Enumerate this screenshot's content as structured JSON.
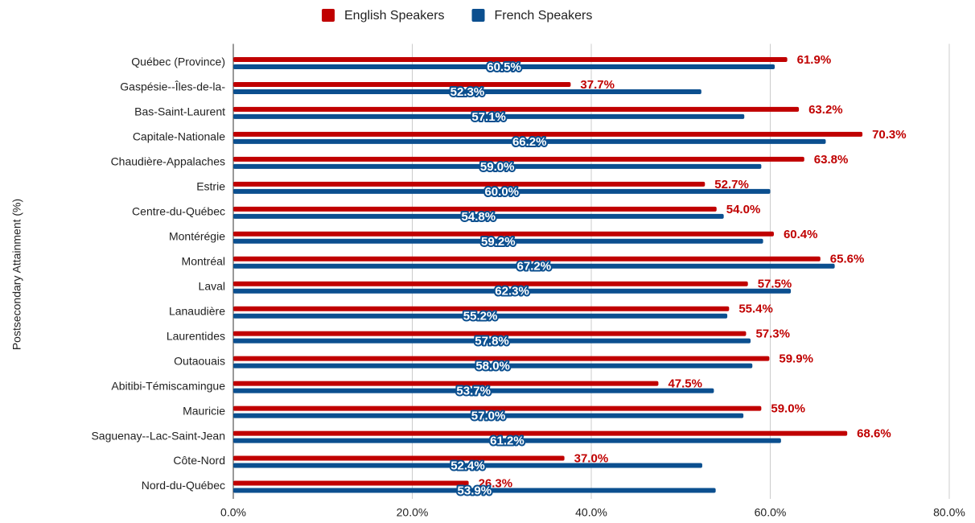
{
  "chart_data": {
    "type": "hbar",
    "ylabel": "Postsecondary Attainment (%)",
    "categories": [
      "Québec (Province)",
      "Gaspésie--Îles-de-la-",
      "Bas-Saint-Laurent",
      "Capitale-Nationale",
      "Chaudière-Appalaches",
      "Estrie",
      "Centre-du-Québec",
      "Montérégie",
      "Montréal",
      "Laval",
      "Lanaudière",
      "Laurentides",
      "Outaouais",
      "Abitibi-Témiscamingue",
      "Mauricie",
      "Saguenay--Lac-Saint-Jean",
      "Côte-Nord",
      "Nord-du-Québec"
    ],
    "series": [
      {
        "name": "English Speakers",
        "color": "#c00000",
        "values": [
          61.9,
          37.7,
          63.2,
          70.3,
          63.8,
          52.7,
          54.0,
          60.4,
          65.6,
          57.5,
          55.4,
          57.3,
          59.9,
          47.5,
          59.0,
          68.6,
          37.0,
          26.3
        ],
        "value_labels": [
          "61.9%",
          "37.7%",
          "63.2%",
          "70.3%",
          "63.8%",
          "52.7%",
          "54.0%",
          "60.4%",
          "65.6%",
          "57.5%",
          "55.4%",
          "57.3%",
          "59.9%",
          "47.5%",
          "59.0%",
          "68.6%",
          "37.0%",
          "26.3%"
        ]
      },
      {
        "name": "French Speakers",
        "color": "#0b4f8f",
        "values": [
          60.5,
          52.3,
          57.1,
          66.2,
          59.0,
          60.0,
          54.8,
          59.2,
          67.2,
          62.3,
          55.2,
          57.8,
          58.0,
          53.7,
          57.0,
          61.2,
          52.4,
          53.9
        ],
        "value_labels": [
          "60.5%",
          "52.3%",
          "57.1%",
          "66.2%",
          "59.0%",
          "60.0%",
          "54.8%",
          "59.2%",
          "67.2%",
          "62.3%",
          "55.2%",
          "57.8%",
          "58.0%",
          "53.7%",
          "57.0%",
          "61.2%",
          "52.4%",
          "53.9%"
        ]
      }
    ],
    "xlim": [
      0,
      80
    ],
    "xticks": [
      {
        "value": 0,
        "label": "0.0%"
      },
      {
        "value": 20,
        "label": "20.0%"
      },
      {
        "value": 40,
        "label": "40.0%"
      },
      {
        "value": 60,
        "label": "60.0%"
      },
      {
        "value": 80,
        "label": "80.0%"
      }
    ],
    "grid": true,
    "legend": "top"
  }
}
